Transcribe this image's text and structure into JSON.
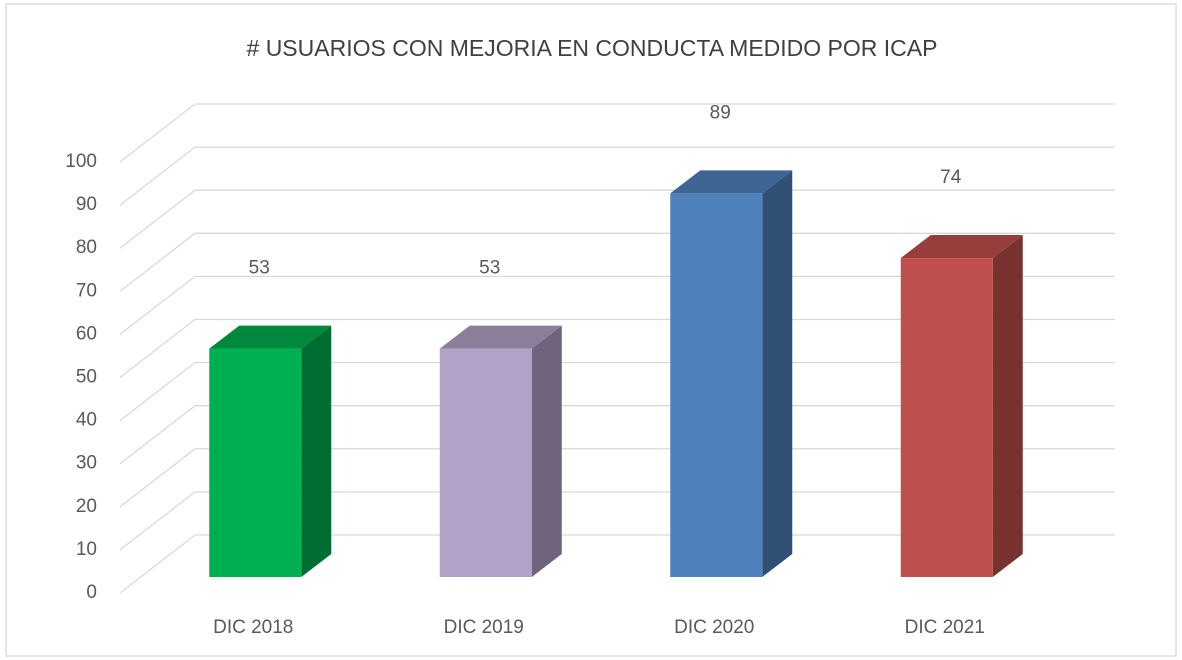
{
  "chart_data": {
    "type": "bar3d",
    "title": "# USUARIOS CON MEJORIA EN CONDUCTA MEDIDO POR ICAP",
    "categories": [
      "DIC 2018",
      "DIC 2019",
      "DIC 2020",
      "DIC 2021"
    ],
    "values": [
      53,
      53,
      89,
      74
    ],
    "colors": [
      "#00b050",
      "#b3a2c7",
      "#4f81bd",
      "#c0504d"
    ],
    "ylim": [
      0,
      100
    ],
    "yticks": [
      0,
      10,
      20,
      30,
      40,
      50,
      60,
      70,
      80,
      90,
      100
    ],
    "grid": true
  }
}
